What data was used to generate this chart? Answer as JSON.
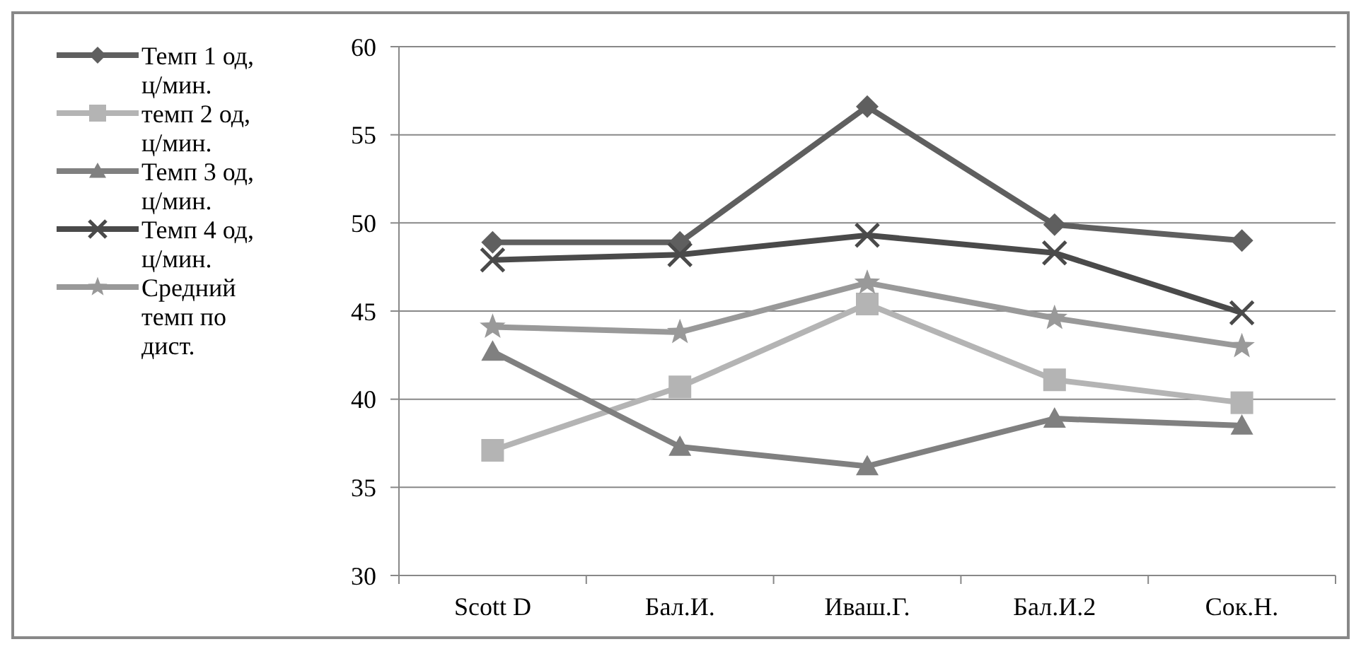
{
  "chart_data": {
    "type": "line",
    "categories": [
      "Scott D",
      "Бал.И.",
      "Иваш.Г.",
      "Бал.И.2",
      "Сок.Н."
    ],
    "ylim": [
      30,
      60
    ],
    "yticks": [
      30,
      35,
      40,
      45,
      50,
      55,
      60
    ],
    "grid": "y",
    "legend": "left",
    "line_style": "solid",
    "series": [
      {
        "name": "Темп 1 од, ц/мин.",
        "color": "#5f5f5f",
        "marker": "diamond",
        "values": [
          48.9,
          48.9,
          56.6,
          49.9,
          49.0
        ]
      },
      {
        "name": "темп 2 од, ц/мин.",
        "color": "#b4b4b4",
        "marker": "square",
        "values": [
          37.1,
          40.7,
          45.4,
          41.1,
          39.8
        ]
      },
      {
        "name": "Темп 3 од, ц/мин.",
        "color": "#808080",
        "marker": "triangle",
        "values": [
          42.7,
          37.3,
          36.2,
          38.9,
          38.5
        ]
      },
      {
        "name": "Темп 4 од, ц/мин.",
        "color": "#4a4a4a",
        "marker": "cross",
        "values": [
          47.9,
          48.2,
          49.3,
          48.3,
          44.9
        ]
      },
      {
        "name": "Средний темп по дист.",
        "color": "#999999",
        "marker": "star",
        "values": [
          44.1,
          43.8,
          46.6,
          44.6,
          43.0
        ]
      }
    ]
  }
}
